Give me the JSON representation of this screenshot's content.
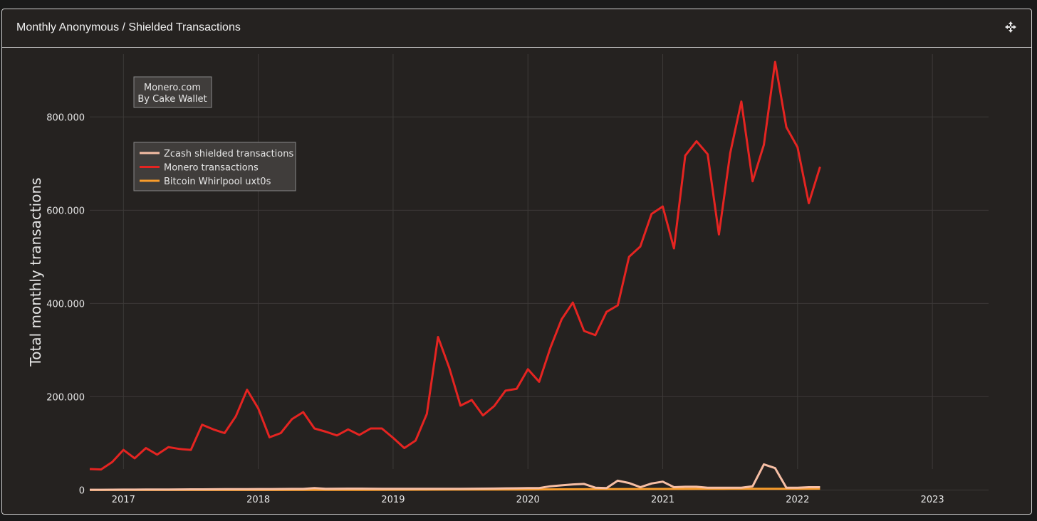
{
  "panel": {
    "title": "Monthly Anonymous / Shielded Transactions",
    "move_icon": "move-arrows-icon"
  },
  "watermark": {
    "line1": "Monero.com",
    "line2": "By Cake Wallet"
  },
  "colors": {
    "background": "#252220",
    "grid": "#3d3a38",
    "zcash": "#f7bfa5",
    "monero": "#e52421",
    "bitcoin": "#f99c2b"
  },
  "chart_data": {
    "type": "line",
    "ylabel": "Total monthly transactions",
    "xlabel": "",
    "xlim": [
      "2016-10",
      "2023-06"
    ],
    "ylim": [
      -10000,
      950000
    ],
    "x_ticks": [
      "2017",
      "2018",
      "2019",
      "2020",
      "2021",
      "2022",
      "2023"
    ],
    "y_ticks": [
      {
        "value": 0,
        "label": "0"
      },
      {
        "value": 200000,
        "label": "200.000"
      },
      {
        "value": 400000,
        "label": "400.000"
      },
      {
        "value": 600000,
        "label": "600.000"
      },
      {
        "value": 800000,
        "label": "800.000"
      }
    ],
    "grid": true,
    "legend_position": "top-left",
    "series": [
      {
        "name": "Zcash shielded transactions",
        "color": "#f7bfa5",
        "x": [
          "2016-10",
          "2016-11",
          "2016-12",
          "2017-01",
          "2017-02",
          "2017-03",
          "2017-04",
          "2017-05",
          "2017-06",
          "2017-07",
          "2017-08",
          "2017-09",
          "2017-10",
          "2017-11",
          "2017-12",
          "2018-01",
          "2018-02",
          "2018-03",
          "2018-04",
          "2018-05",
          "2018-06",
          "2018-07",
          "2018-08",
          "2018-09",
          "2018-10",
          "2018-11",
          "2018-12",
          "2019-01",
          "2019-02",
          "2019-03",
          "2019-04",
          "2019-05",
          "2019-06",
          "2019-07",
          "2019-08",
          "2019-09",
          "2019-10",
          "2019-11",
          "2019-12",
          "2020-01",
          "2020-02",
          "2020-03",
          "2020-04",
          "2020-05",
          "2020-06",
          "2020-07",
          "2020-08",
          "2020-09",
          "2020-10",
          "2020-11",
          "2020-12",
          "2021-01",
          "2021-02",
          "2021-03",
          "2021-04",
          "2021-05",
          "2021-06",
          "2021-07",
          "2021-08",
          "2021-09",
          "2021-10",
          "2021-11",
          "2021-12",
          "2022-01",
          "2022-02",
          "2022-03"
        ],
        "values": [
          500,
          600,
          700,
          800,
          900,
          1000,
          1100,
          1200,
          1300,
          1400,
          1500,
          1600,
          1700,
          1800,
          1900,
          2000,
          2100,
          2200,
          2300,
          2400,
          4000,
          2600,
          2800,
          3000,
          3000,
          2800,
          2600,
          2500,
          2500,
          2500,
          2500,
          2500,
          2600,
          2700,
          2800,
          3000,
          3200,
          3600,
          3800,
          4000,
          4200,
          8000,
          10000,
          12000,
          13000,
          5000,
          4000,
          20000,
          15000,
          6000,
          14000,
          18000,
          6000,
          7000,
          7000,
          5000,
          5000,
          5000,
          5000,
          8000,
          55000,
          47000,
          5000,
          5000,
          6000,
          6000
        ]
      },
      {
        "name": "Monero transactions",
        "color": "#e52421",
        "x": [
          "2016-10",
          "2016-11",
          "2016-12",
          "2017-01",
          "2017-02",
          "2017-03",
          "2017-04",
          "2017-05",
          "2017-06",
          "2017-07",
          "2017-08",
          "2017-09",
          "2017-10",
          "2017-11",
          "2017-12",
          "2018-01",
          "2018-02",
          "2018-03",
          "2018-04",
          "2018-05",
          "2018-06",
          "2018-07",
          "2018-08",
          "2018-09",
          "2018-10",
          "2018-11",
          "2018-12",
          "2019-01",
          "2019-02",
          "2019-03",
          "2019-04",
          "2019-05",
          "2019-06",
          "2019-07",
          "2019-08",
          "2019-09",
          "2019-10",
          "2019-11",
          "2019-12",
          "2020-01",
          "2020-02",
          "2020-03",
          "2020-04",
          "2020-05",
          "2020-06",
          "2020-07",
          "2020-08",
          "2020-09",
          "2020-10",
          "2020-11",
          "2020-12",
          "2021-01",
          "2021-02",
          "2021-03",
          "2021-04",
          "2021-05",
          "2021-06",
          "2021-07",
          "2021-08",
          "2021-09",
          "2021-10",
          "2021-11",
          "2021-12",
          "2022-01",
          "2022-02",
          "2022-03"
        ],
        "values": [
          45000,
          44000,
          60000,
          86000,
          68000,
          90000,
          76000,
          92000,
          88000,
          86000,
          140000,
          130000,
          122000,
          158000,
          215000,
          175000,
          113000,
          122000,
          152000,
          167000,
          132000,
          125000,
          117000,
          130000,
          118000,
          132000,
          132000,
          112000,
          90000,
          106000,
          163000,
          328000,
          262000,
          181000,
          193000,
          160000,
          180000,
          213000,
          217000,
          259000,
          232000,
          305000,
          366000,
          402000,
          341000,
          332000,
          382000,
          396000,
          500000,
          522000,
          592000,
          608000,
          518000,
          717000,
          748000,
          720000,
          548000,
          722000,
          833000,
          662000,
          740000,
          918000,
          778000,
          735000,
          615000,
          693000
        ]
      },
      {
        "name": "Bitcoin Whirlpool uxt0s",
        "color": "#f99c2b",
        "x": [
          "2016-10",
          "2017-06",
          "2018-01",
          "2018-07",
          "2019-01",
          "2019-07",
          "2020-01",
          "2020-04",
          "2020-07",
          "2020-10",
          "2021-01",
          "2021-04",
          "2021-07",
          "2021-10",
          "2022-01",
          "2022-03"
        ],
        "values": [
          0,
          0,
          0,
          200,
          500,
          800,
          1200,
          1500,
          1800,
          2000,
          2200,
          2400,
          2500,
          2600,
          2700,
          2800
        ]
      }
    ]
  }
}
